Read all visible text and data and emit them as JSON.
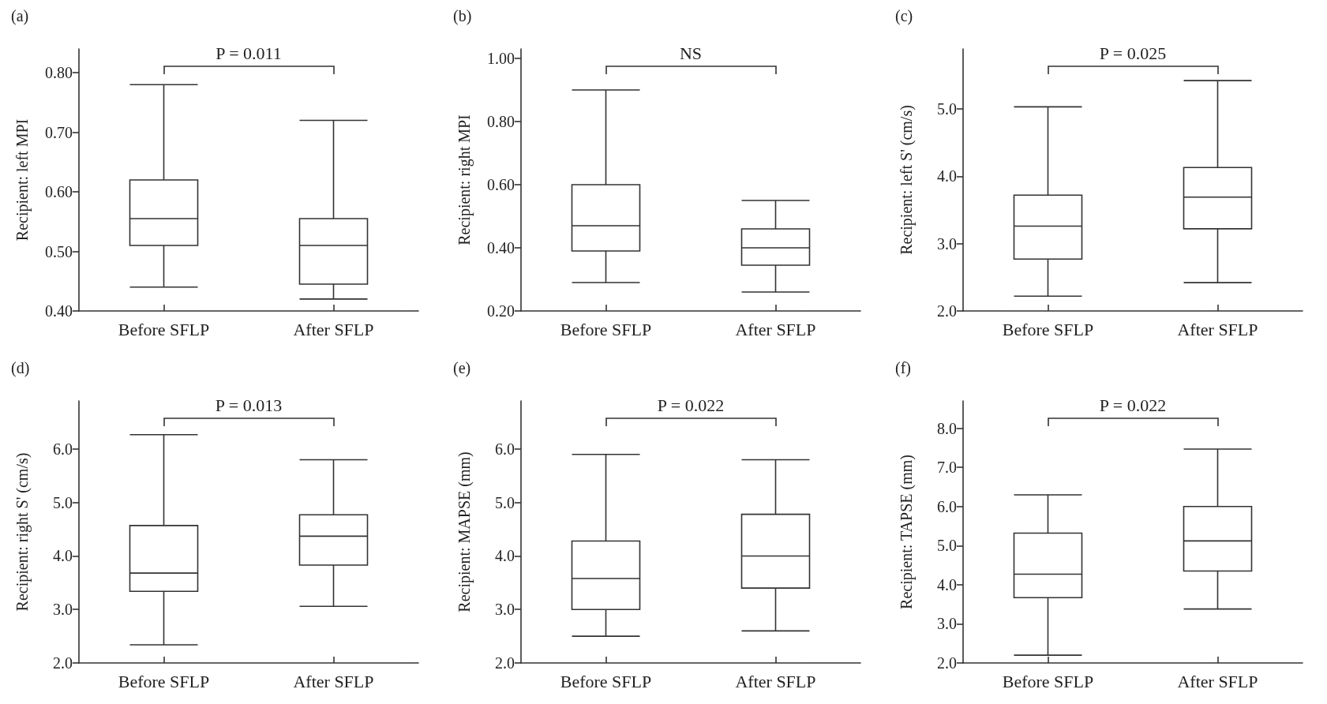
{
  "chart_data": [
    {
      "type": "box",
      "title": "(a)",
      "ylabel": "Recipient: left MPI",
      "categories": [
        "Before SFLP",
        "After SFLP"
      ],
      "ylim": [
        0.4,
        0.84
      ],
      "yticks": [
        {
          "value": 0.4,
          "label": "0.40"
        },
        {
          "value": 0.5,
          "label": "0.50"
        },
        {
          "value": 0.6,
          "label": "0.60"
        },
        {
          "value": 0.7,
          "label": "0.70"
        },
        {
          "value": 0.8,
          "label": "0.80"
        }
      ],
      "annotations": [
        "P = 0.011"
      ],
      "series": [
        {
          "color": "#333333",
          "boxes": [
            {
              "low": 0.44,
              "q1": 0.51,
              "median": 0.555,
              "q3": 0.62,
              "high": 0.78
            },
            {
              "low": 0.42,
              "q1": 0.445,
              "median": 0.51,
              "q3": 0.555,
              "high": 0.72
            }
          ]
        }
      ]
    },
    {
      "type": "box",
      "title": "(b)",
      "ylabel": "Recipient: right MPI",
      "categories": [
        "Before SFLP",
        "After SFLP"
      ],
      "ylim": [
        0.2,
        1.03
      ],
      "yticks": [
        {
          "value": 0.2,
          "label": "0.20"
        },
        {
          "value": 0.4,
          "label": "0.40"
        },
        {
          "value": 0.6,
          "label": "0.60"
        },
        {
          "value": 0.8,
          "label": "0.80"
        },
        {
          "value": 1.0,
          "label": "1.00"
        }
      ],
      "annotations": [
        "NS"
      ],
      "series": [
        {
          "color": "#333333",
          "boxes": [
            {
              "low": 0.29,
              "q1": 0.39,
              "median": 0.47,
              "q3": 0.6,
              "high": 0.9
            },
            {
              "low": 0.26,
              "q1": 0.345,
              "median": 0.4,
              "q3": 0.46,
              "high": 0.55
            }
          ]
        }
      ]
    },
    {
      "type": "box",
      "title": "(c)",
      "ylabel": "Recipient: left S' (cm/s)",
      "categories": [
        "Before SFLP",
        "After SFLP"
      ],
      "ylim": [
        2.0,
        5.89
      ],
      "yticks": [
        {
          "value": 2,
          "label": "2.0"
        },
        {
          "value": 3,
          "label": "3.0"
        },
        {
          "value": 4,
          "label": "4.0"
        },
        {
          "value": 5,
          "label": "5.0"
        }
      ],
      "annotations": [
        "P = 0.025"
      ],
      "series": [
        {
          "color": "#333333",
          "boxes": [
            {
              "low": 2.22,
              "q1": 2.77,
              "median": 3.26,
              "q3": 3.72,
              "high": 5.03
            },
            {
              "low": 2.42,
              "q1": 3.22,
              "median": 3.69,
              "q3": 4.13,
              "high": 5.42
            }
          ]
        }
      ]
    },
    {
      "type": "box",
      "title": "(d)",
      "ylabel": "Recipient: right S' (cm/s)",
      "categories": [
        "Before SFLP",
        "After SFLP"
      ],
      "ylim": [
        2.0,
        6.9
      ],
      "yticks": [
        {
          "value": 2,
          "label": "2.0"
        },
        {
          "value": 3,
          "label": "3.0"
        },
        {
          "value": 4,
          "label": "4.0"
        },
        {
          "value": 5,
          "label": "5.0"
        },
        {
          "value": 6,
          "label": "6.0"
        }
      ],
      "annotations": [
        "P = 0.013"
      ],
      "series": [
        {
          "color": "#333333",
          "boxes": [
            {
              "low": 2.34,
              "q1": 3.34,
              "median": 3.68,
              "q3": 4.57,
              "high": 6.27
            },
            {
              "low": 3.06,
              "q1": 3.83,
              "median": 4.37,
              "q3": 4.77,
              "high": 5.8
            }
          ]
        }
      ]
    },
    {
      "type": "box",
      "title": "(e)",
      "ylabel": "Recipient: MAPSE (mm)",
      "categories": [
        "Before SFLP",
        "After SFLP"
      ],
      "ylim": [
        2.0,
        6.9
      ],
      "yticks": [
        {
          "value": 2,
          "label": "2.0"
        },
        {
          "value": 3,
          "label": "3.0"
        },
        {
          "value": 4,
          "label": "4.0"
        },
        {
          "value": 5,
          "label": "5.0"
        },
        {
          "value": 6,
          "label": "6.0"
        }
      ],
      "annotations": [
        "P = 0.022"
      ],
      "series": [
        {
          "color": "#333333",
          "boxes": [
            {
              "low": 2.5,
              "q1": 3.0,
              "median": 3.58,
              "q3": 4.28,
              "high": 5.9
            },
            {
              "low": 2.6,
              "q1": 3.4,
              "median": 4.0,
              "q3": 4.78,
              "high": 5.8
            }
          ]
        }
      ]
    },
    {
      "type": "box",
      "title": "(f)",
      "ylabel": "Recipient: TAPSE (mm)",
      "categories": [
        "Before SFLP",
        "After SFLP"
      ],
      "ylim": [
        2.0,
        8.7
      ],
      "yticks": [
        {
          "value": 2,
          "label": "2.0"
        },
        {
          "value": 3,
          "label": "3.0"
        },
        {
          "value": 4,
          "label": "4.0"
        },
        {
          "value": 5,
          "label": "5.0"
        },
        {
          "value": 6,
          "label": "6.0"
        },
        {
          "value": 7,
          "label": "7.0"
        },
        {
          "value": 8,
          "label": "8.0"
        }
      ],
      "annotations": [
        "P = 0.022"
      ],
      "series": [
        {
          "color": "#333333",
          "boxes": [
            {
              "low": 2.2,
              "q1": 3.67,
              "median": 4.27,
              "q3": 5.32,
              "high": 6.3
            },
            {
              "low": 3.38,
              "q1": 4.35,
              "median": 5.12,
              "q3": 6.0,
              "high": 7.47
            }
          ]
        }
      ]
    }
  ]
}
